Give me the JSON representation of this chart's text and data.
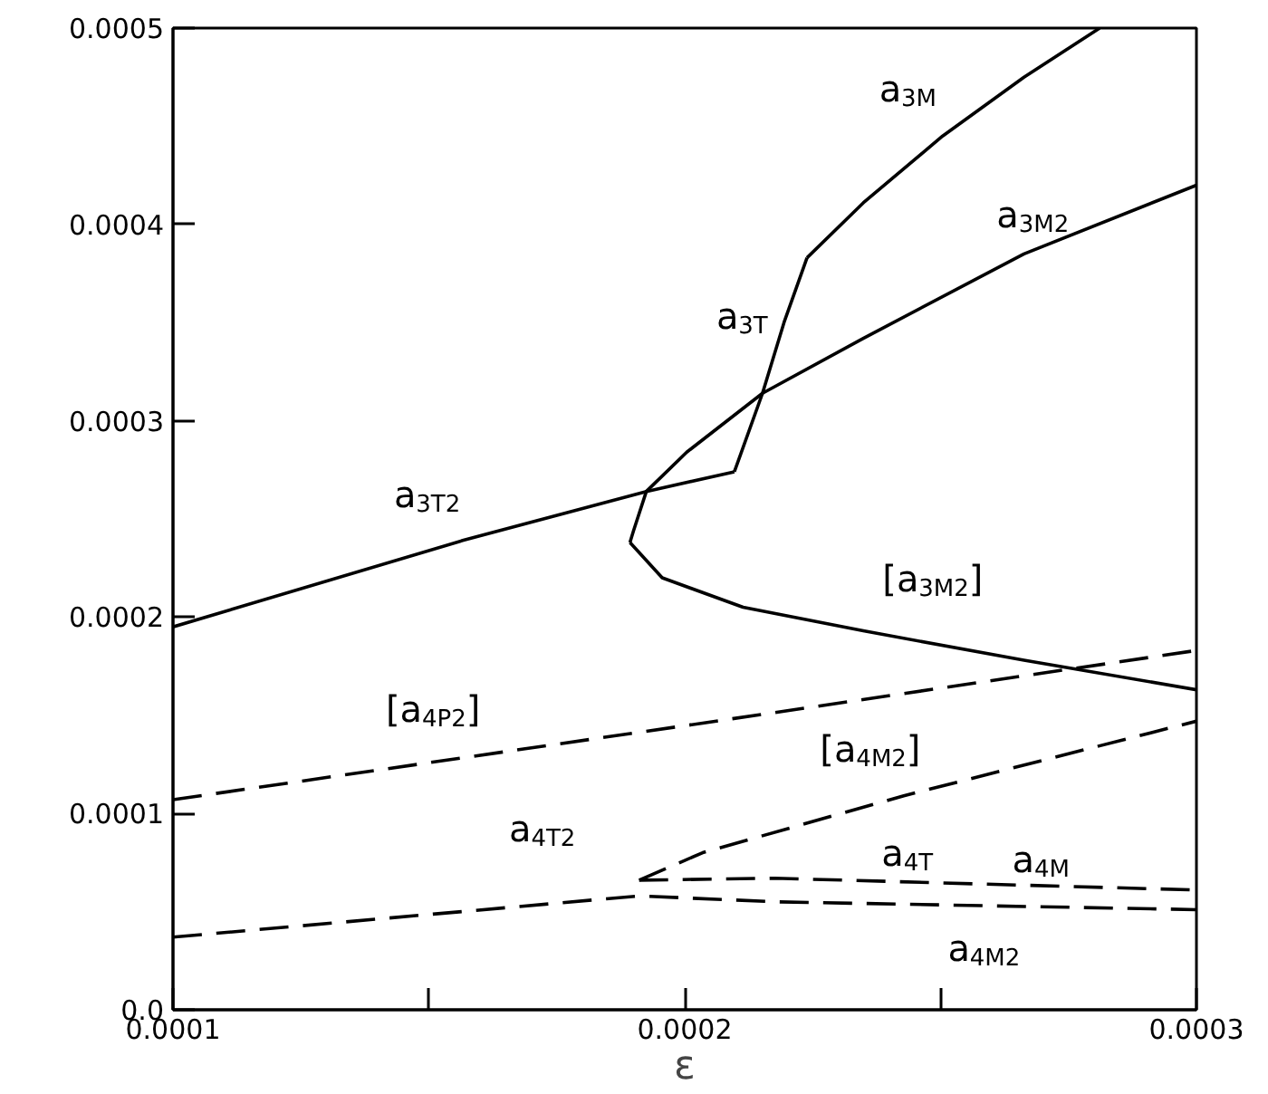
{
  "chart_data": {
    "type": "line",
    "xlabel": "ε",
    "xlim": [
      0.0001,
      0.0003
    ],
    "ylim": [
      0,
      0.0005
    ],
    "xticks": [
      {
        "value": 0.0001,
        "label": "0.0001"
      },
      {
        "value": 0.00015,
        "label": null
      },
      {
        "value": 0.0002,
        "label": "0.0002"
      },
      {
        "value": 0.00025,
        "label": null
      },
      {
        "value": 0.0003,
        "label": "0.0003"
      }
    ],
    "yticks": [
      {
        "value": 0,
        "label": "0.0"
      },
      {
        "value": 0.0001,
        "label": "0.0001"
      },
      {
        "value": 0.0002,
        "label": "0.0002"
      },
      {
        "value": 0.0003,
        "label": "0.0003"
      },
      {
        "value": 0.0004,
        "label": "0.0004"
      },
      {
        "value": 0.0005,
        "label": "0.0005"
      }
    ],
    "grid": false,
    "legend": false,
    "series": [
      {
        "name": "a$_{3M}$",
        "color": "#000000",
        "line_style": "solid",
        "x": [
          0.0002239,
          0.0002349,
          0.0002504,
          0.0002663,
          0.0002811
        ],
        "values": [
          0.000383,
          0.000411,
          0.000445,
          0.000475,
          0.0005
        ]
      },
      {
        "name": "a$_{3T}$",
        "color": "#000000",
        "line_style": "solid",
        "x": [
          0.0002097,
          0.0002152,
          0.0002194,
          0.0002239
        ],
        "values": [
          0.000274,
          0.000314,
          0.00035,
          0.000383
        ]
      },
      {
        "name": "a$_{3T2}$",
        "color": "#000000",
        "line_style": "solid",
        "x": [
          0.0001,
          0.0001566,
          0.0001925,
          0.0002097
        ],
        "values": [
          0.000195,
          0.000239,
          0.000264,
          0.000274
        ]
      },
      {
        "name": "a$_{3M2}$",
        "color": "#000000",
        "line_style": "solid",
        "x": [
          0.0003,
          0.0002663,
          0.0002349,
          0.0002152,
          0.0002004,
          0.0001925,
          0.00019,
          0.0001893
        ],
        "values": [
          0.00042,
          0.000385,
          0.000342,
          0.000314,
          0.000284,
          0.000264,
          0.000244,
          0.000238
        ]
      },
      {
        "name": "[a$_{3M2}$]",
        "color": "#000000",
        "line_style": "solid",
        "x": [
          0.0001893,
          0.0001956,
          0.0002114,
          0.0002349,
          0.0002663,
          0.0003
        ],
        "values": [
          0.000238,
          0.00022,
          0.000205,
          0.000193,
          0.000178,
          0.000163
        ]
      },
      {
        "name": "[a$_{4P2}$]",
        "color": "#000000",
        "line_style": "dashed",
        "x": [
          0.0001,
          0.0002035,
          0.0003
        ],
        "values": [
          0.000107,
          0.000146,
          0.000183
        ]
      },
      {
        "name": "[a$_{4M2}$]",
        "color": "#000000",
        "line_style": "dashed",
        "x": [
          0.0001911,
          0.0002035,
          0.0002428,
          0.0003
        ],
        "values": [
          6.6e-05,
          8e-05,
          0.000109,
          0.000147
        ]
      },
      {
        "name": "a$_{4T2}$",
        "color": "#000000",
        "line_style": "dashed",
        "x": [
          0.0001,
          0.0001911,
          0.0002176,
          0.0003
        ],
        "values": [
          3.7e-05,
          5.8e-05,
          5.5e-05,
          5.1e-05
        ]
      },
      {
        "name": "a$_{4T}$",
        "color": "#000000",
        "line_style": "dashed",
        "x": [
          0.0001911,
          0.0002176,
          0.0003
        ],
        "values": [
          6.6e-05,
          6.7e-05,
          6.1e-05
        ]
      }
    ],
    "annotations": [
      "a$_{4M2}$",
      "a$_{4M}$"
    ]
  }
}
